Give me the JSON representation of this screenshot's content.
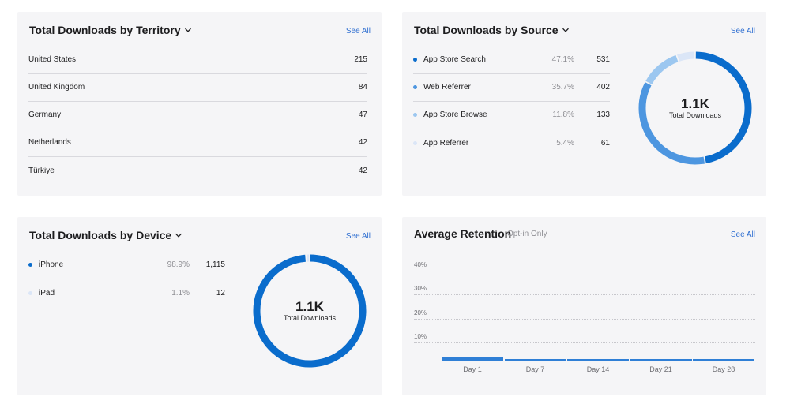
{
  "colors": {
    "accent": "#2f6fd1",
    "dark_blue": "#0a6ccc",
    "mid_blue": "#4d96e0",
    "light_blue": "#9cc7f0",
    "lightest_blue": "#dbe6f7"
  },
  "territory": {
    "title": "Total Downloads by Territory",
    "see_all": "See All",
    "rows": [
      {
        "name": "United States",
        "value": "215"
      },
      {
        "name": "United Kingdom",
        "value": "84"
      },
      {
        "name": "Germany",
        "value": "47"
      },
      {
        "name": "Netherlands",
        "value": "42"
      },
      {
        "name": "Türkiye",
        "value": "42"
      }
    ]
  },
  "source": {
    "title": "Total Downloads by Source",
    "see_all": "See All",
    "rows": [
      {
        "name": "App Store Search",
        "pct": "47.1%",
        "value": "531",
        "share": 0.471,
        "color": "#0a6ccc"
      },
      {
        "name": "Web Referrer",
        "pct": "35.7%",
        "value": "402",
        "share": 0.357,
        "color": "#4d96e0"
      },
      {
        "name": "App Store Browse",
        "pct": "11.8%",
        "value": "133",
        "share": 0.118,
        "color": "#9cc7f0"
      },
      {
        "name": "App Referrer",
        "pct": "5.4%",
        "value": "61",
        "share": 0.054,
        "color": "#dbe6f7"
      }
    ],
    "donut_total": "1.1K",
    "donut_label": "Total Downloads"
  },
  "device": {
    "title": "Total Downloads by Device",
    "see_all": "See All",
    "rows": [
      {
        "name": "iPhone",
        "pct": "98.9%",
        "value": "1,115",
        "share": 0.989,
        "color": "#0a6ccc"
      },
      {
        "name": "iPad",
        "pct": "1.1%",
        "value": "12",
        "share": 0.011,
        "color": "#dbe6f7"
      }
    ],
    "donut_total": "1.1K",
    "donut_label": "Total Downloads"
  },
  "retention": {
    "title": "Average Retention",
    "subtitle": "Opt-in Only",
    "see_all": "See All",
    "chart_data": {
      "type": "bar",
      "categories": [
        "Day 1",
        "Day 7",
        "Day 14",
        "Day 21",
        "Day 28"
      ],
      "values": [
        1.5,
        0.5,
        0.5,
        0.5,
        0.5
      ],
      "ylim": [
        0,
        40
      ],
      "yticks": [
        "10%",
        "20%",
        "30%",
        "40%"
      ],
      "grid": true
    }
  }
}
